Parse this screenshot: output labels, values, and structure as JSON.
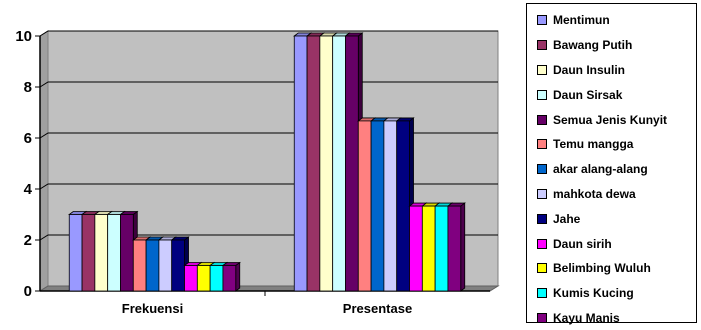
{
  "chart_data": {
    "type": "bar",
    "categories": [
      "Frekuensi",
      "Presentase"
    ],
    "ylim": [
      0,
      10
    ],
    "yticks": [
      0,
      2,
      4,
      6,
      8,
      10
    ],
    "grid": true,
    "legend_position": "right",
    "style": "3d-clustered-column",
    "series": [
      {
        "name": "Mentimun",
        "color": "#9999ff",
        "values": [
          3,
          10
        ]
      },
      {
        "name": "Bawang Putih",
        "color": "#993366",
        "values": [
          3,
          10
        ]
      },
      {
        "name": "Daun Insulin",
        "color": "#ffffcc",
        "values": [
          3,
          10
        ]
      },
      {
        "name": "Daun Sirsak",
        "color": "#ccffff",
        "values": [
          3,
          10
        ]
      },
      {
        "name": "Semua Jenis Kunyit",
        "color": "#660066",
        "values": [
          3,
          10
        ]
      },
      {
        "name": "Temu mangga",
        "color": "#ff8080",
        "values": [
          2,
          6.67
        ]
      },
      {
        "name": "akar alang-alang",
        "color": "#0066cc",
        "values": [
          2,
          6.67
        ]
      },
      {
        "name": "mahkota dewa",
        "color": "#ccccff",
        "values": [
          2,
          6.67
        ]
      },
      {
        "name": "Jahe",
        "color": "#000080",
        "values": [
          2,
          6.67
        ]
      },
      {
        "name": "Daun sirih",
        "color": "#ff00ff",
        "values": [
          1,
          3.33
        ]
      },
      {
        "name": "Belimbing Wuluh",
        "color": "#ffff00",
        "values": [
          1,
          3.33
        ]
      },
      {
        "name": "Kumis Kucing",
        "color": "#00ffff",
        "values": [
          1,
          3.33
        ]
      },
      {
        "name": "Kayu Manis",
        "color": "#800080",
        "values": [
          1,
          3.33
        ]
      }
    ]
  }
}
